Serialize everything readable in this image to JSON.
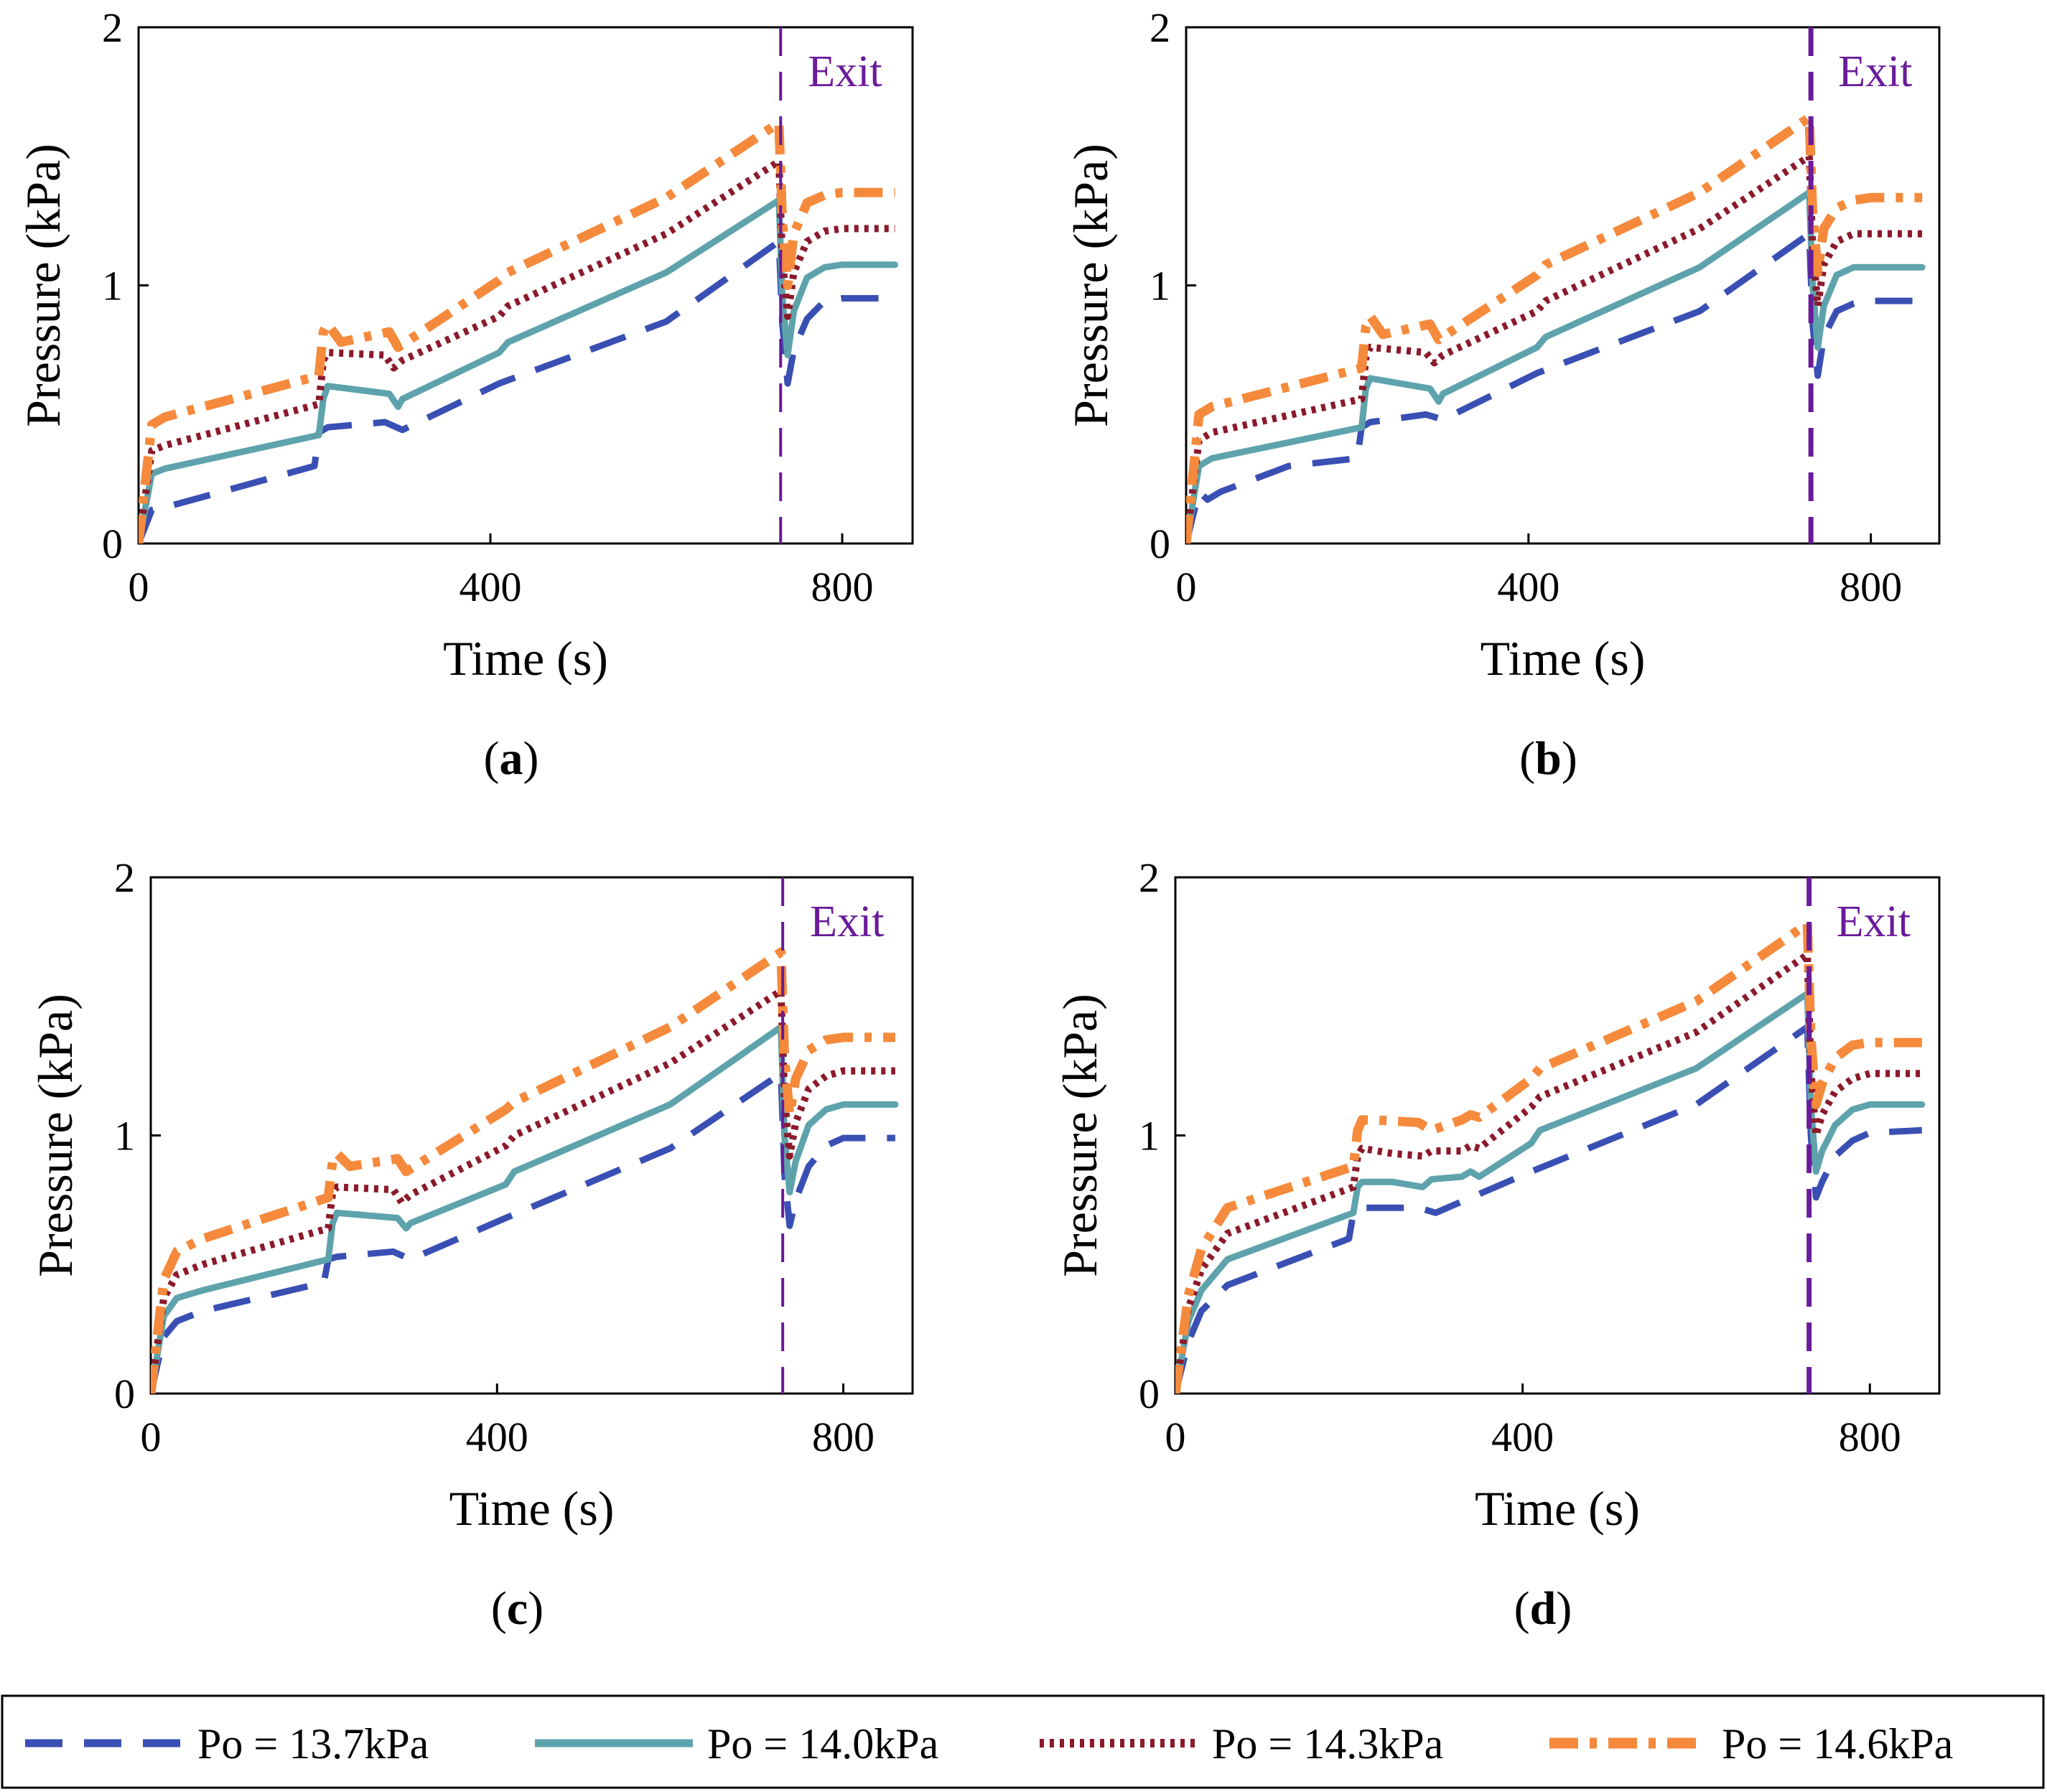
{
  "chart_data": {
    "type": "line",
    "shared": {
      "xlabel": "Time (s)",
      "ylabel": "Pressure (kPa)",
      "xlim": [
        0,
        880
      ],
      "ylim": [
        0,
        2
      ],
      "xticks": [
        0,
        400,
        800
      ],
      "yticks": [
        0,
        1,
        2
      ],
      "exit_label": "Exit",
      "exit_time": 730
    },
    "colors": {
      "po137": "#3a4fb3",
      "po140": "#5ea3ac",
      "po143": "#8b1a2b",
      "po146": "#f58a3c",
      "exit": "#6a1b9a"
    },
    "legend": [
      {
        "key": "po137",
        "label": "Po = 13.7kPa",
        "style": "dashed"
      },
      {
        "key": "po140",
        "label": "Po = 14.0kPa",
        "style": "solid"
      },
      {
        "key": "po143",
        "label": "Po = 14.3kPa",
        "style": "dotted"
      },
      {
        "key": "po146",
        "label": "Po = 14.6kPa",
        "style": "dashdot"
      }
    ],
    "panels": [
      {
        "id": "a",
        "caption_letter": "a",
        "series": [
          {
            "key": "po137",
            "name": "Po = 13.7kPa",
            "x": [
              0,
              15,
              30,
              200,
              205,
              215,
              280,
              300,
              410,
              600,
              728,
              732,
              738,
              745,
              760,
              780,
              800,
              860
            ],
            "y": [
              0,
              0.13,
              0.14,
              0.3,
              0.43,
              0.45,
              0.47,
              0.44,
              0.62,
              0.86,
              1.17,
              0.85,
              0.62,
              0.75,
              0.87,
              0.94,
              0.95,
              0.95
            ]
          },
          {
            "key": "po140",
            "name": "Po = 14.0kPa",
            "x": [
              0,
              15,
              30,
              205,
              210,
              215,
              285,
              295,
              300,
              410,
              420,
              600,
              728,
              732,
              738,
              745,
              760,
              780,
              800,
              860
            ],
            "y": [
              0,
              0.27,
              0.29,
              0.42,
              0.56,
              0.61,
              0.58,
              0.53,
              0.56,
              0.74,
              0.78,
              1.05,
              1.33,
              0.95,
              0.73,
              0.9,
              1.03,
              1.07,
              1.08,
              1.08
            ]
          },
          {
            "key": "po143",
            "name": "Po = 14.3kPa",
            "x": [
              0,
              15,
              30,
              205,
              210,
              215,
              280,
              290,
              300,
              410,
              420,
              600,
              728,
              732,
              738,
              745,
              760,
              780,
              800,
              860
            ],
            "y": [
              0,
              0.36,
              0.38,
              0.54,
              0.71,
              0.74,
              0.73,
              0.68,
              0.71,
              0.88,
              0.92,
              1.2,
              1.48,
              1.1,
              0.88,
              1.05,
              1.17,
              1.21,
              1.22,
              1.22
            ]
          },
          {
            "key": "po146",
            "name": "Po = 14.6kPa",
            "x": [
              0,
              15,
              30,
              205,
              210,
              215,
              230,
              285,
              295,
              410,
              420,
              600,
              728,
              732,
              738,
              745,
              760,
              780,
              800,
              860
            ],
            "y": [
              0,
              0.46,
              0.49,
              0.65,
              0.82,
              0.85,
              0.78,
              0.82,
              0.76,
              1.02,
              1.05,
              1.34,
              1.63,
              1.25,
              1.0,
              1.2,
              1.32,
              1.35,
              1.36,
              1.36
            ]
          }
        ]
      },
      {
        "id": "b",
        "caption_letter": "b",
        "series": [
          {
            "key": "po137",
            "name": "Po = 13.7kPa",
            "x": [
              0,
              15,
              25,
              40,
              120,
              200,
              205,
              215,
              280,
              300,
              410,
              600,
              728,
              732,
              738,
              745,
              760,
              780,
              800,
              860
            ],
            "y": [
              0,
              0.2,
              0.17,
              0.2,
              0.3,
              0.33,
              0.45,
              0.47,
              0.5,
              0.48,
              0.66,
              0.9,
              1.2,
              0.85,
              0.65,
              0.8,
              0.9,
              0.93,
              0.94,
              0.94
            ]
          },
          {
            "key": "po140",
            "name": "Po = 14.0kPa",
            "x": [
              0,
              15,
              30,
              205,
              210,
              215,
              285,
              295,
              300,
              410,
              420,
              600,
              728,
              732,
              738,
              745,
              760,
              780,
              800,
              860
            ],
            "y": [
              0,
              0.3,
              0.33,
              0.45,
              0.6,
              0.64,
              0.6,
              0.55,
              0.58,
              0.76,
              0.8,
              1.07,
              1.36,
              1.0,
              0.76,
              0.92,
              1.04,
              1.07,
              1.07,
              1.07
            ]
          },
          {
            "key": "po143",
            "name": "Po = 14.3kPa",
            "x": [
              0,
              15,
              30,
              205,
              210,
              215,
              280,
              290,
              300,
              410,
              420,
              600,
              728,
              732,
              738,
              745,
              760,
              780,
              800,
              860
            ],
            "y": [
              0,
              0.4,
              0.43,
              0.56,
              0.72,
              0.76,
              0.74,
              0.7,
              0.73,
              0.9,
              0.94,
              1.22,
              1.5,
              1.15,
              0.92,
              1.08,
              1.17,
              1.2,
              1.2,
              1.2
            ]
          },
          {
            "key": "po146",
            "name": "Po = 14.6kPa",
            "x": [
              0,
              15,
              30,
              205,
              210,
              215,
              230,
              285,
              295,
              410,
              420,
              600,
              728,
              732,
              738,
              745,
              760,
              780,
              800,
              860
            ],
            "y": [
              0,
              0.5,
              0.53,
              0.68,
              0.84,
              0.88,
              0.81,
              0.85,
              0.79,
              1.04,
              1.08,
              1.36,
              1.65,
              1.28,
              1.05,
              1.22,
              1.3,
              1.33,
              1.34,
              1.34
            ]
          }
        ]
      },
      {
        "id": "c",
        "caption_letter": "c",
        "series": [
          {
            "key": "po137",
            "name": "Po = 13.7kPa",
            "x": [
              0,
              15,
              30,
              60,
              200,
              205,
              215,
              280,
              300,
              410,
              600,
              728,
              732,
              738,
              745,
              760,
              780,
              800,
              860
            ],
            "y": [
              0,
              0.22,
              0.28,
              0.32,
              0.43,
              0.52,
              0.53,
              0.55,
              0.52,
              0.68,
              0.95,
              1.24,
              0.85,
              0.65,
              0.75,
              0.88,
              0.96,
              0.99,
              0.99
            ]
          },
          {
            "key": "po140",
            "name": "Po = 14.0kPa",
            "x": [
              0,
              15,
              30,
              60,
              205,
              210,
              215,
              285,
              295,
              300,
              410,
              420,
              600,
              728,
              732,
              738,
              745,
              760,
              780,
              800,
              860
            ],
            "y": [
              0,
              0.3,
              0.37,
              0.4,
              0.52,
              0.66,
              0.7,
              0.68,
              0.64,
              0.66,
              0.81,
              0.86,
              1.12,
              1.42,
              1.0,
              0.78,
              0.9,
              1.04,
              1.1,
              1.12,
              1.12
            ]
          },
          {
            "key": "po143",
            "name": "Po = 14.3kPa",
            "x": [
              0,
              15,
              30,
              60,
              205,
              210,
              215,
              280,
              290,
              300,
              410,
              420,
              600,
              728,
              732,
              738,
              745,
              760,
              780,
              800,
              860
            ],
            "y": [
              0,
              0.37,
              0.46,
              0.5,
              0.64,
              0.78,
              0.8,
              0.79,
              0.74,
              0.77,
              0.96,
              1.0,
              1.28,
              1.56,
              1.15,
              0.92,
              1.05,
              1.18,
              1.23,
              1.25,
              1.25
            ]
          },
          {
            "key": "po146",
            "name": "Po = 14.6kPa",
            "x": [
              0,
              15,
              30,
              60,
              205,
              210,
              215,
              230,
              285,
              295,
              410,
              420,
              600,
              728,
              732,
              738,
              745,
              760,
              780,
              800,
              860
            ],
            "y": [
              0,
              0.44,
              0.55,
              0.6,
              0.76,
              0.9,
              0.93,
              0.88,
              0.91,
              0.86,
              1.1,
              1.13,
              1.42,
              1.71,
              1.3,
              1.08,
              1.22,
              1.33,
              1.37,
              1.38,
              1.38
            ]
          }
        ]
      },
      {
        "id": "d",
        "caption_letter": "d",
        "series": [
          {
            "key": "po137",
            "name": "Po = 13.7kPa",
            "x": [
              0,
              15,
              30,
              60,
              200,
              205,
              215,
              280,
              300,
              410,
              600,
              728,
              732,
              738,
              745,
              760,
              780,
              800,
              860
            ],
            "y": [
              0,
              0.2,
              0.32,
              0.42,
              0.6,
              0.7,
              0.72,
              0.72,
              0.7,
              0.86,
              1.12,
              1.42,
              1.0,
              0.76,
              0.82,
              0.92,
              0.98,
              1.01,
              1.02
            ]
          },
          {
            "key": "po140",
            "name": "Po = 14.0kPa",
            "x": [
              0,
              15,
              30,
              60,
              205,
              210,
              215,
              250,
              285,
              295,
              330,
              340,
              350,
              410,
              420,
              600,
              728,
              732,
              738,
              745,
              760,
              780,
              800,
              860
            ],
            "y": [
              0,
              0.28,
              0.4,
              0.52,
              0.7,
              0.8,
              0.82,
              0.82,
              0.8,
              0.83,
              0.84,
              0.86,
              0.84,
              0.97,
              1.02,
              1.26,
              1.55,
              1.12,
              0.86,
              0.94,
              1.04,
              1.1,
              1.12,
              1.12
            ]
          },
          {
            "key": "po143",
            "name": "Po = 14.3kPa",
            "x": [
              0,
              15,
              30,
              60,
              205,
              210,
              215,
              250,
              285,
              295,
              330,
              340,
              350,
              410,
              420,
              600,
              728,
              732,
              738,
              745,
              760,
              780,
              800,
              860
            ],
            "y": [
              0,
              0.33,
              0.48,
              0.62,
              0.8,
              0.92,
              0.95,
              0.93,
              0.92,
              0.94,
              0.94,
              0.96,
              0.95,
              1.11,
              1.15,
              1.4,
              1.7,
              1.25,
              1.0,
              1.08,
              1.17,
              1.22,
              1.24,
              1.24
            ]
          },
          {
            "key": "po146",
            "name": "Po = 14.6kPa",
            "x": [
              0,
              15,
              30,
              60,
              205,
              210,
              215,
              230,
              280,
              295,
              330,
              340,
              350,
              410,
              420,
              600,
              728,
              732,
              738,
              745,
              760,
              780,
              800,
              860
            ],
            "y": [
              0,
              0.38,
              0.56,
              0.72,
              0.88,
              1.02,
              1.06,
              1.06,
              1.05,
              1.02,
              1.06,
              1.08,
              1.07,
              1.22,
              1.26,
              1.52,
              1.82,
              1.38,
              1.12,
              1.2,
              1.3,
              1.35,
              1.36,
              1.36
            ]
          }
        ]
      }
    ]
  }
}
